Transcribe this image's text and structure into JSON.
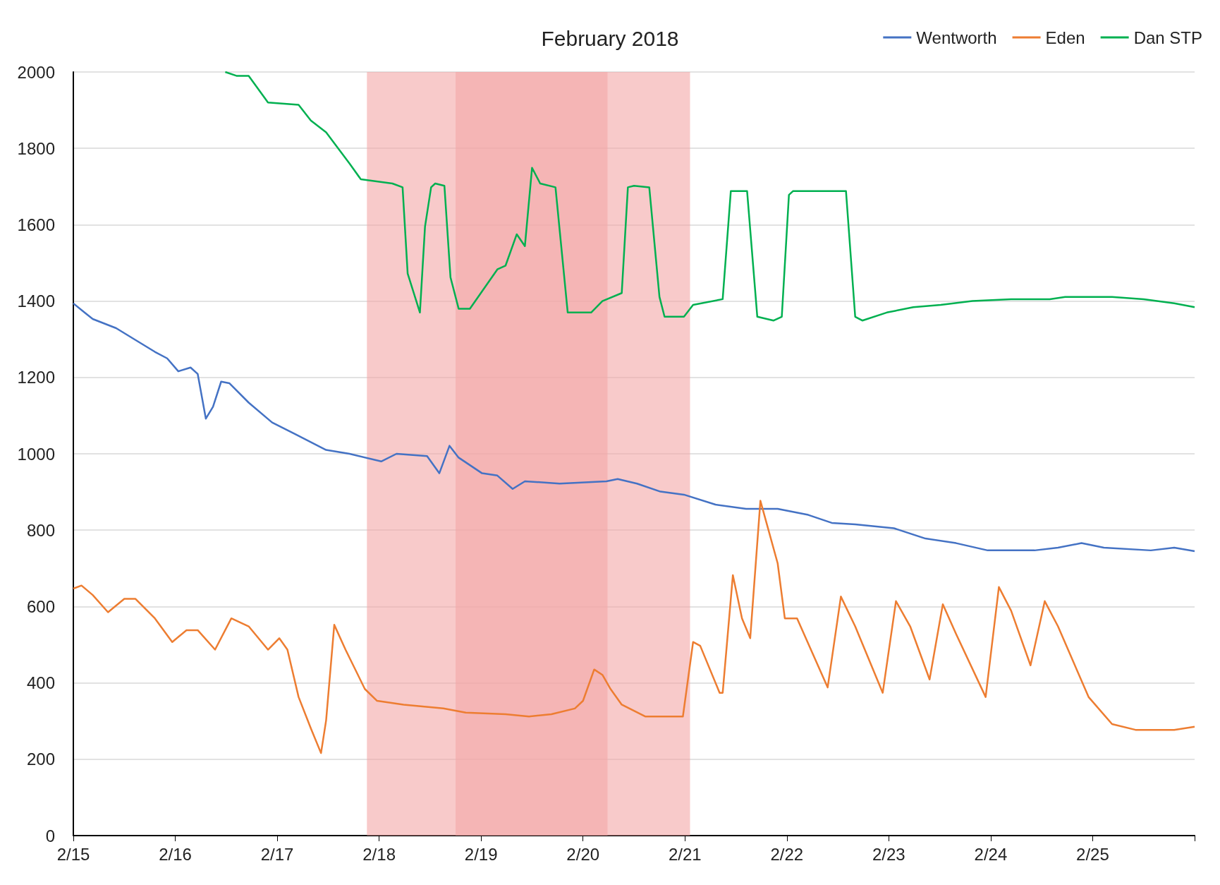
{
  "chart_data": {
    "type": "line",
    "title": "February 2018",
    "xlim": [
      "2018-02-15",
      "2018-02-26"
    ],
    "xticks": [
      {
        "value": "2018-02-15",
        "label": "2/15"
      },
      {
        "value": "2018-02-16",
        "label": "2/16"
      },
      {
        "value": "2018-02-17",
        "label": "2/17"
      },
      {
        "value": "2018-02-18",
        "label": "2/18"
      },
      {
        "value": "2018-02-19",
        "label": "2/19"
      },
      {
        "value": "2018-02-20",
        "label": "2/20"
      },
      {
        "value": "2018-02-21",
        "label": "2/21"
      },
      {
        "value": "2018-02-22",
        "label": "2/22"
      },
      {
        "value": "2018-02-23",
        "label": "2/23"
      },
      {
        "value": "2018-02-24",
        "label": "2/24"
      },
      {
        "value": "2018-02-25",
        "label": "2/25"
      },
      {
        "value": "2018-02-26",
        "label": null
      }
    ],
    "ylim": [
      0,
      2000
    ],
    "yticks": [
      0,
      200,
      400,
      600,
      800,
      1000,
      1200,
      1400,
      1600,
      1800,
      2000
    ],
    "grid": "y",
    "legend": "top right",
    "marker": "none",
    "line_style": "solid",
    "bands": [
      {
        "axis": "x",
        "from": "2018-02-18T18:00",
        "to": "2018-02-21T01:12",
        "color": "#f4a6a6"
      },
      {
        "axis": "x",
        "from": "2018-02-17T21:07",
        "to": "2018-02-20T05:46",
        "color": "#f4a6a6"
      }
    ],
    "series": [
      {
        "name": "Wentworth",
        "color": "#4472c4",
        "x": [
          "2018-02-15T00:00",
          "2018-02-15T02:38",
          "2018-02-15T04:34",
          "2018-02-15T10:05",
          "2018-02-15T14:38",
          "2018-02-15T19:12",
          "2018-02-15T22:05",
          "2018-02-16T00:43",
          "2018-02-16T03:36",
          "2018-02-16T05:17",
          "2018-02-16T07:12",
          "2018-02-16T08:53",
          "2018-02-16T10:48",
          "2018-02-16T12:43",
          "2018-02-16T17:17",
          "2018-02-16T22:48",
          "2018-02-17T04:19",
          "2018-02-17T11:31",
          "2018-02-17T17:02",
          "2018-02-18T00:29",
          "2018-02-18T04:05",
          "2018-02-18T11:17",
          "2018-02-18T14:10",
          "2018-02-18T16:34",
          "2018-02-18T18:43",
          "2018-02-19T00:14",
          "2018-02-19T03:50",
          "2018-02-19T07:26",
          "2018-02-19T10:19",
          "2018-02-19T18:29",
          "2018-02-20T05:31",
          "2018-02-20T08:10",
          "2018-02-20T12:43",
          "2018-02-20T18:14",
          "2018-02-20T23:46",
          "2018-02-21T07:12",
          "2018-02-21T14:24",
          "2018-02-21T21:50",
          "2018-02-22T05:02",
          "2018-02-22T10:34",
          "2018-02-22T16:05",
          "2018-02-23T01:12",
          "2018-02-23T08:38",
          "2018-02-23T15:50",
          "2018-02-23T23:17",
          "2018-02-24T10:19",
          "2018-02-24T15:50",
          "2018-02-24T21:22",
          "2018-02-25T02:38",
          "2018-02-25T13:41",
          "2018-02-25T19:12",
          "2018-02-26T00:00"
        ],
        "values": [
          1394,
          1370,
          1353,
          1329,
          1298,
          1267,
          1250,
          1216,
          1226,
          1209,
          1092,
          1123,
          1189,
          1185,
          1134,
          1082,
          1051,
          1010,
          1000,
          980,
          1000,
          994,
          949,
          1021,
          990,
          949,
          943,
          908,
          928,
          922,
          928,
          934,
          922,
          901,
          893,
          867,
          856,
          856,
          840,
          819,
          815,
          805,
          778,
          766,
          747,
          747,
          754,
          766,
          754,
          747,
          754,
          745
        ]
      },
      {
        "name": "Eden",
        "color": "#ed7d31",
        "x": [
          "2018-02-15T00:00",
          "2018-02-15T01:55",
          "2018-02-15T04:34",
          "2018-02-15T08:10",
          "2018-02-15T12:00",
          "2018-02-15T14:38",
          "2018-02-15T19:12",
          "2018-02-15T23:17",
          "2018-02-16T02:38",
          "2018-02-16T05:17",
          "2018-02-16T09:22",
          "2018-02-16T13:12",
          "2018-02-16T17:17",
          "2018-02-16T21:50",
          "2018-02-17T00:29",
          "2018-02-17T02:24",
          "2018-02-17T05:02",
          "2018-02-17T07:55",
          "2018-02-17T10:19",
          "2018-02-17T11:31",
          "2018-02-17T13:26",
          "2018-02-17T16:05",
          "2018-02-17T20:38",
          "2018-02-17T23:31",
          "2018-02-18T05:46",
          "2018-02-18T15:07",
          "2018-02-18T20:24",
          "2018-02-19T05:46",
          "2018-02-19T11:17",
          "2018-02-19T16:34",
          "2018-02-19T22:05",
          "2018-02-20T00:00",
          "2018-02-20T02:38",
          "2018-02-20T04:34",
          "2018-02-20T06:29",
          "2018-02-20T09:07",
          "2018-02-20T14:38",
          "2018-02-20T23:31",
          "2018-02-21T01:55",
          "2018-02-21T03:36",
          "2018-02-21T08:10",
          "2018-02-21T08:53",
          "2018-02-21T11:17",
          "2018-02-21T13:26",
          "2018-02-21T15:22",
          "2018-02-21T17:46",
          "2018-02-21T21:50",
          "2018-02-21T23:31",
          "2018-02-22T02:24",
          "2018-02-22T09:36",
          "2018-02-22T12:43",
          "2018-02-22T16:05",
          "2018-02-22T22:34",
          "2018-02-23T01:41",
          "2018-02-23T05:02",
          "2018-02-23T09:36",
          "2018-02-23T12:43",
          "2018-02-23T15:50",
          "2018-02-23T22:48",
          "2018-02-24T01:55",
          "2018-02-24T04:48",
          "2018-02-24T09:22",
          "2018-02-24T12:43",
          "2018-02-24T15:50",
          "2018-02-24T23:02",
          "2018-02-25T04:34",
          "2018-02-25T10:05",
          "2018-02-25T19:12",
          "2018-02-26T00:00"
        ],
        "values": [
          647,
          655,
          630,
          585,
          620,
          620,
          569,
          507,
          538,
          538,
          487,
          569,
          548,
          487,
          517,
          487,
          363,
          281,
          216,
          302,
          552,
          487,
          384,
          353,
          343,
          333,
          322,
          318,
          312,
          318,
          333,
          353,
          435,
          421,
          384,
          343,
          312,
          312,
          507,
          497,
          374,
          374,
          682,
          569,
          517,
          877,
          713,
          569,
          569,
          388,
          626,
          548,
          374,
          614,
          548,
          409,
          606,
          528,
          363,
          651,
          589,
          446,
          614,
          548,
          363,
          292,
          277,
          277,
          285
        ]
      },
      {
        "name": "Dan STP",
        "color": "#00b050",
        "x": [
          "2018-02-16T11:46",
          "2018-02-16T14:24",
          "2018-02-16T17:17",
          "2018-02-16T21:50",
          "2018-02-17T05:02",
          "2018-02-17T07:55",
          "2018-02-17T11:31",
          "2018-02-17T17:02",
          "2018-02-17T19:41",
          "2018-02-18T03:07",
          "2018-02-18T05:31",
          "2018-02-18T06:43",
          "2018-02-18T09:36",
          "2018-02-18T10:48",
          "2018-02-18T12:14",
          "2018-02-18T13:12",
          "2018-02-18T15:22",
          "2018-02-18T16:48",
          "2018-02-18T18:43",
          "2018-02-18T21:22",
          "2018-02-19T03:50",
          "2018-02-19T05:46",
          "2018-02-19T08:24",
          "2018-02-19T10:19",
          "2018-02-19T12:00",
          "2018-02-19T13:55",
          "2018-02-19T17:31",
          "2018-02-19T20:24",
          "2018-02-20T01:55",
          "2018-02-20T04:34",
          "2018-02-20T09:07",
          "2018-02-20T10:34",
          "2018-02-20T12:00",
          "2018-02-20T15:36",
          "2018-02-20T18:00",
          "2018-02-20T19:12",
          "2018-02-20T23:46",
          "2018-02-21T01:55",
          "2018-02-21T08:53",
          "2018-02-21T10:48",
          "2018-02-21T14:38",
          "2018-02-21T17:02",
          "2018-02-21T20:53",
          "2018-02-21T22:48",
          "2018-02-22T00:29",
          "2018-02-22T01:26",
          "2018-02-22T13:55",
          "2018-02-22T16:05",
          "2018-02-22T17:46",
          "2018-02-22T23:31",
          "2018-02-23T05:46",
          "2018-02-23T12:14",
          "2018-02-23T19:41",
          "2018-02-24T04:48",
          "2018-02-24T13:55",
          "2018-02-24T17:31",
          "2018-02-25T04:34",
          "2018-02-25T12:00",
          "2018-02-25T19:12",
          "2018-02-26T00:00"
        ],
        "values": [
          2000,
          1990,
          1990,
          1920,
          1914,
          1873,
          1842,
          1760,
          1719,
          1708,
          1698,
          1472,
          1370,
          1595,
          1698,
          1708,
          1702,
          1462,
          1380,
          1380,
          1483,
          1493,
          1575,
          1544,
          1749,
          1708,
          1698,
          1370,
          1370,
          1400,
          1421,
          1698,
          1702,
          1698,
          1411,
          1359,
          1359,
          1390,
          1405,
          1688,
          1688,
          1359,
          1349,
          1359,
          1678,
          1688,
          1688,
          1359,
          1349,
          1370,
          1384,
          1390,
          1400,
          1405,
          1405,
          1411,
          1411,
          1405,
          1394,
          1384
        ]
      }
    ]
  }
}
